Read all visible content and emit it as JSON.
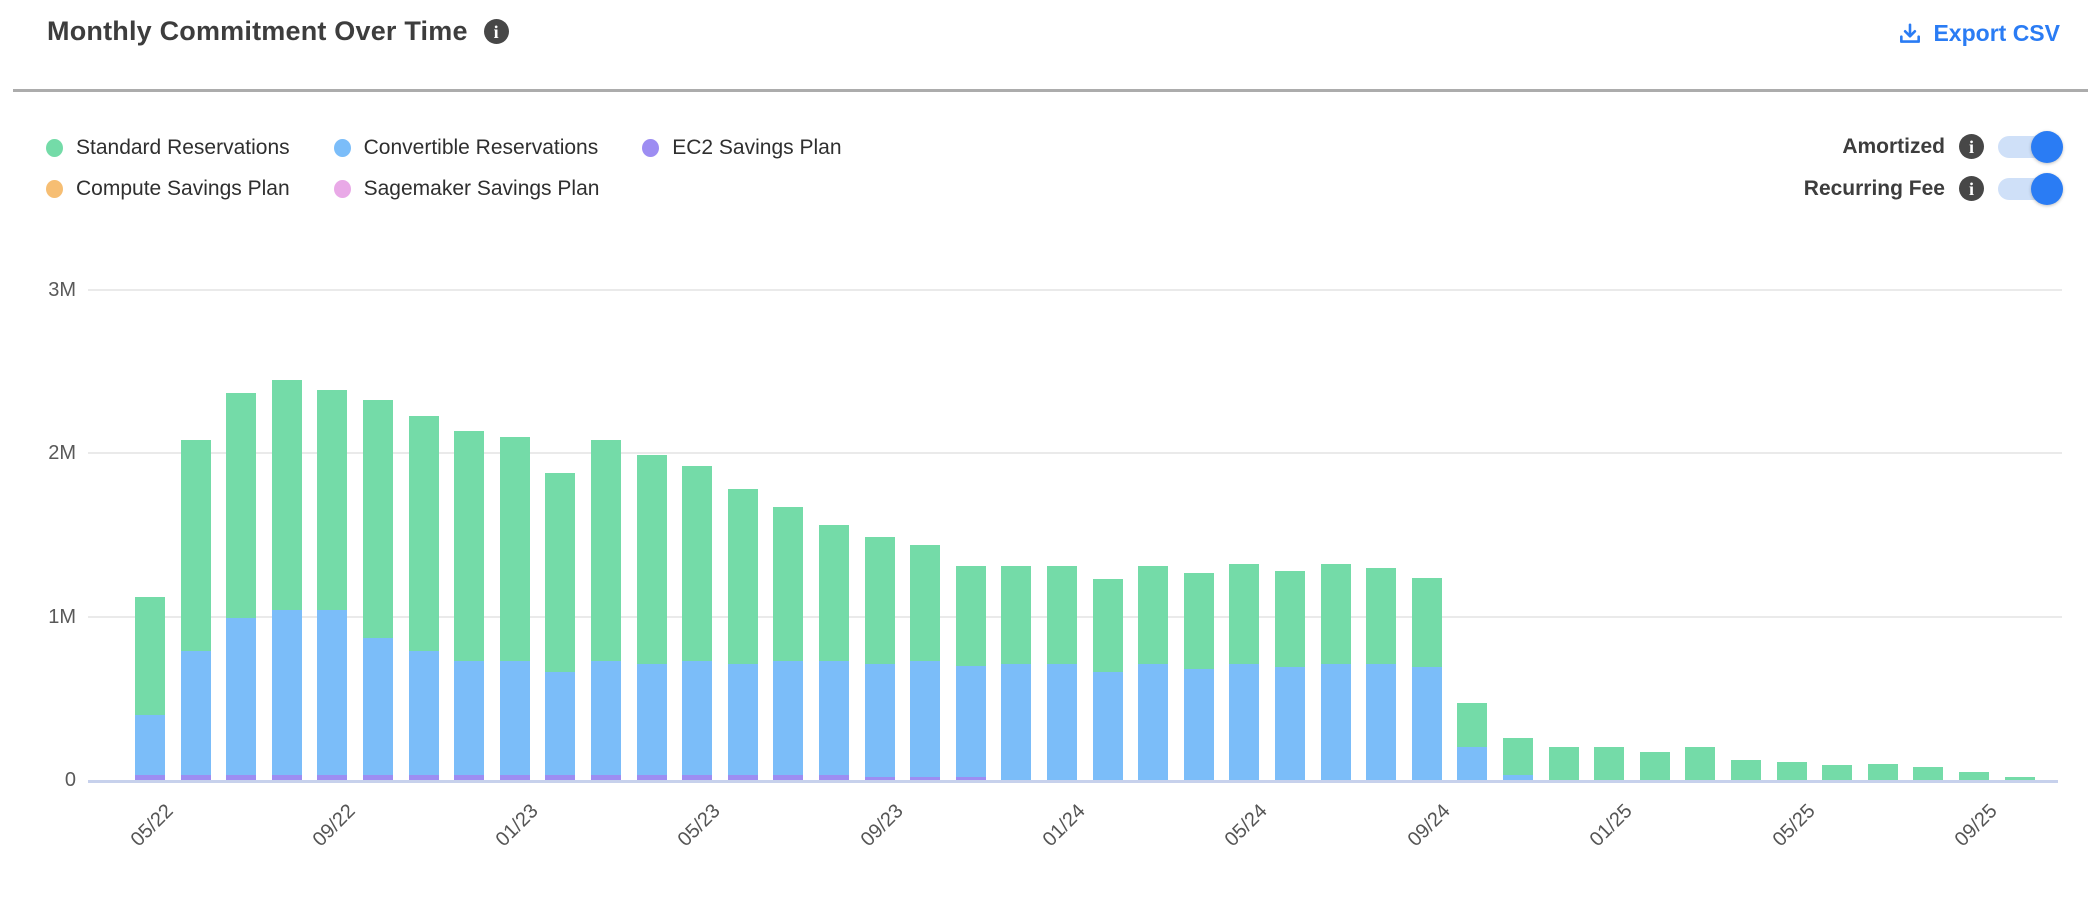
{
  "header": {
    "title": "Monthly Commitment Over Time",
    "export_label": "Export CSV",
    "info_glyph": "i"
  },
  "colors": {
    "accent_blue": "#2a7cf4",
    "toggle_track": "#cfe0f8",
    "divider": "#acacac",
    "grid_line": "#eaeaea",
    "axis_line": "#c7d1ec",
    "axis_text": "#595959",
    "title_text": "#3d3d3d",
    "info_icon_bg": "#474747"
  },
  "legend": {
    "items": [
      {
        "label": "Standard Reservations",
        "color": "#74dba8"
      },
      {
        "label": "Convertible Reservations",
        "color": "#7bbdf9"
      },
      {
        "label": "EC2 Savings Plan",
        "color": "#9d8df2"
      },
      {
        "label": "Compute Savings Plan",
        "color": "#f6be73"
      },
      {
        "label": "Sagemaker Savings Plan",
        "color": "#e9a9e7"
      }
    ]
  },
  "toggles": [
    {
      "label": "Amortized",
      "state": "on"
    },
    {
      "label": "Recurring Fee",
      "state": "on"
    }
  ],
  "chart_data": {
    "type": "bar",
    "stacked": true,
    "title": "Monthly Commitment Over Time",
    "xlabel": "",
    "ylabel": "",
    "ylim": [
      0,
      3
    ],
    "grid": "horizontal",
    "unit": "M",
    "yticks": [
      {
        "value": 0,
        "label": "0"
      },
      {
        "value": 1,
        "label": "1M"
      },
      {
        "value": 2,
        "label": "2M"
      },
      {
        "value": 3,
        "label": "3M"
      }
    ],
    "xtick_every": 4,
    "categories": [
      "05/22",
      "06/22",
      "07/22",
      "08/22",
      "09/22",
      "10/22",
      "11/22",
      "12/22",
      "01/23",
      "02/23",
      "03/23",
      "04/23",
      "05/23",
      "06/23",
      "07/23",
      "08/23",
      "09/23",
      "10/23",
      "11/23",
      "12/23",
      "01/24",
      "02/24",
      "03/24",
      "04/24",
      "05/24",
      "06/24",
      "07/24",
      "08/24",
      "09/24",
      "10/24",
      "11/24",
      "12/24",
      "01/25",
      "02/25",
      "03/25",
      "04/25",
      "05/25",
      "06/25",
      "07/25",
      "08/25",
      "09/25",
      "10/25"
    ],
    "series": [
      {
        "name": "EC2 Savings Plan",
        "color": "#9d8df2",
        "values": [
          0.03,
          0.03,
          0.03,
          0.03,
          0.03,
          0.03,
          0.03,
          0.03,
          0.03,
          0.03,
          0.03,
          0.03,
          0.03,
          0.03,
          0.03,
          0.03,
          0.02,
          0.02,
          0.02,
          0,
          0,
          0,
          0,
          0,
          0,
          0,
          0,
          0,
          0,
          0,
          0,
          0,
          0,
          0,
          0,
          0,
          0,
          0,
          0,
          0,
          0,
          0
        ]
      },
      {
        "name": "Convertible Reservations",
        "color": "#7bbdf9",
        "values": [
          0.37,
          0.76,
          0.96,
          1.01,
          1.01,
          0.84,
          0.76,
          0.7,
          0.7,
          0.63,
          0.7,
          0.68,
          0.7,
          0.68,
          0.7,
          0.7,
          0.69,
          0.71,
          0.68,
          0.71,
          0.71,
          0.66,
          0.71,
          0.68,
          0.71,
          0.69,
          0.71,
          0.71,
          0.69,
          0.2,
          0.03,
          0,
          0,
          0,
          0,
          0,
          0,
          0,
          0,
          0,
          0,
          0
        ]
      },
      {
        "name": "Standard Reservations",
        "color": "#74dba8",
        "values": [
          0.72,
          1.29,
          1.38,
          1.41,
          1.35,
          1.46,
          1.44,
          1.41,
          1.37,
          1.22,
          1.35,
          1.28,
          1.19,
          1.07,
          0.94,
          0.83,
          0.78,
          0.71,
          0.61,
          0.6,
          0.6,
          0.57,
          0.6,
          0.59,
          0.61,
          0.59,
          0.61,
          0.59,
          0.55,
          0.27,
          0.23,
          0.2,
          0.2,
          0.17,
          0.2,
          0.12,
          0.11,
          0.09,
          0.1,
          0.08,
          0.05,
          0.02
        ]
      },
      {
        "name": "Compute Savings Plan",
        "color": "#f6be73",
        "values": [
          0,
          0,
          0,
          0,
          0,
          0,
          0,
          0,
          0,
          0,
          0,
          0,
          0,
          0,
          0,
          0,
          0,
          0,
          0,
          0,
          0,
          0,
          0,
          0,
          0,
          0,
          0,
          0,
          0,
          0,
          0,
          0,
          0,
          0,
          0,
          0,
          0,
          0,
          0,
          0,
          0,
          0
        ]
      },
      {
        "name": "Sagemaker Savings Plan",
        "color": "#e9a9e7",
        "values": [
          0,
          0,
          0,
          0,
          0,
          0,
          0,
          0,
          0,
          0,
          0,
          0,
          0,
          0,
          0,
          0,
          0,
          0,
          0,
          0,
          0,
          0,
          0,
          0,
          0,
          0,
          0,
          0,
          0,
          0,
          0,
          0,
          0,
          0,
          0,
          0,
          0,
          0,
          0,
          0,
          0,
          0
        ]
      }
    ],
    "legend_entries": [
      "Standard Reservations",
      "Convertible Reservations",
      "EC2 Savings Plan",
      "Compute Savings Plan",
      "Sagemaker Savings Plan"
    ],
    "legend_position": "top-left"
  }
}
